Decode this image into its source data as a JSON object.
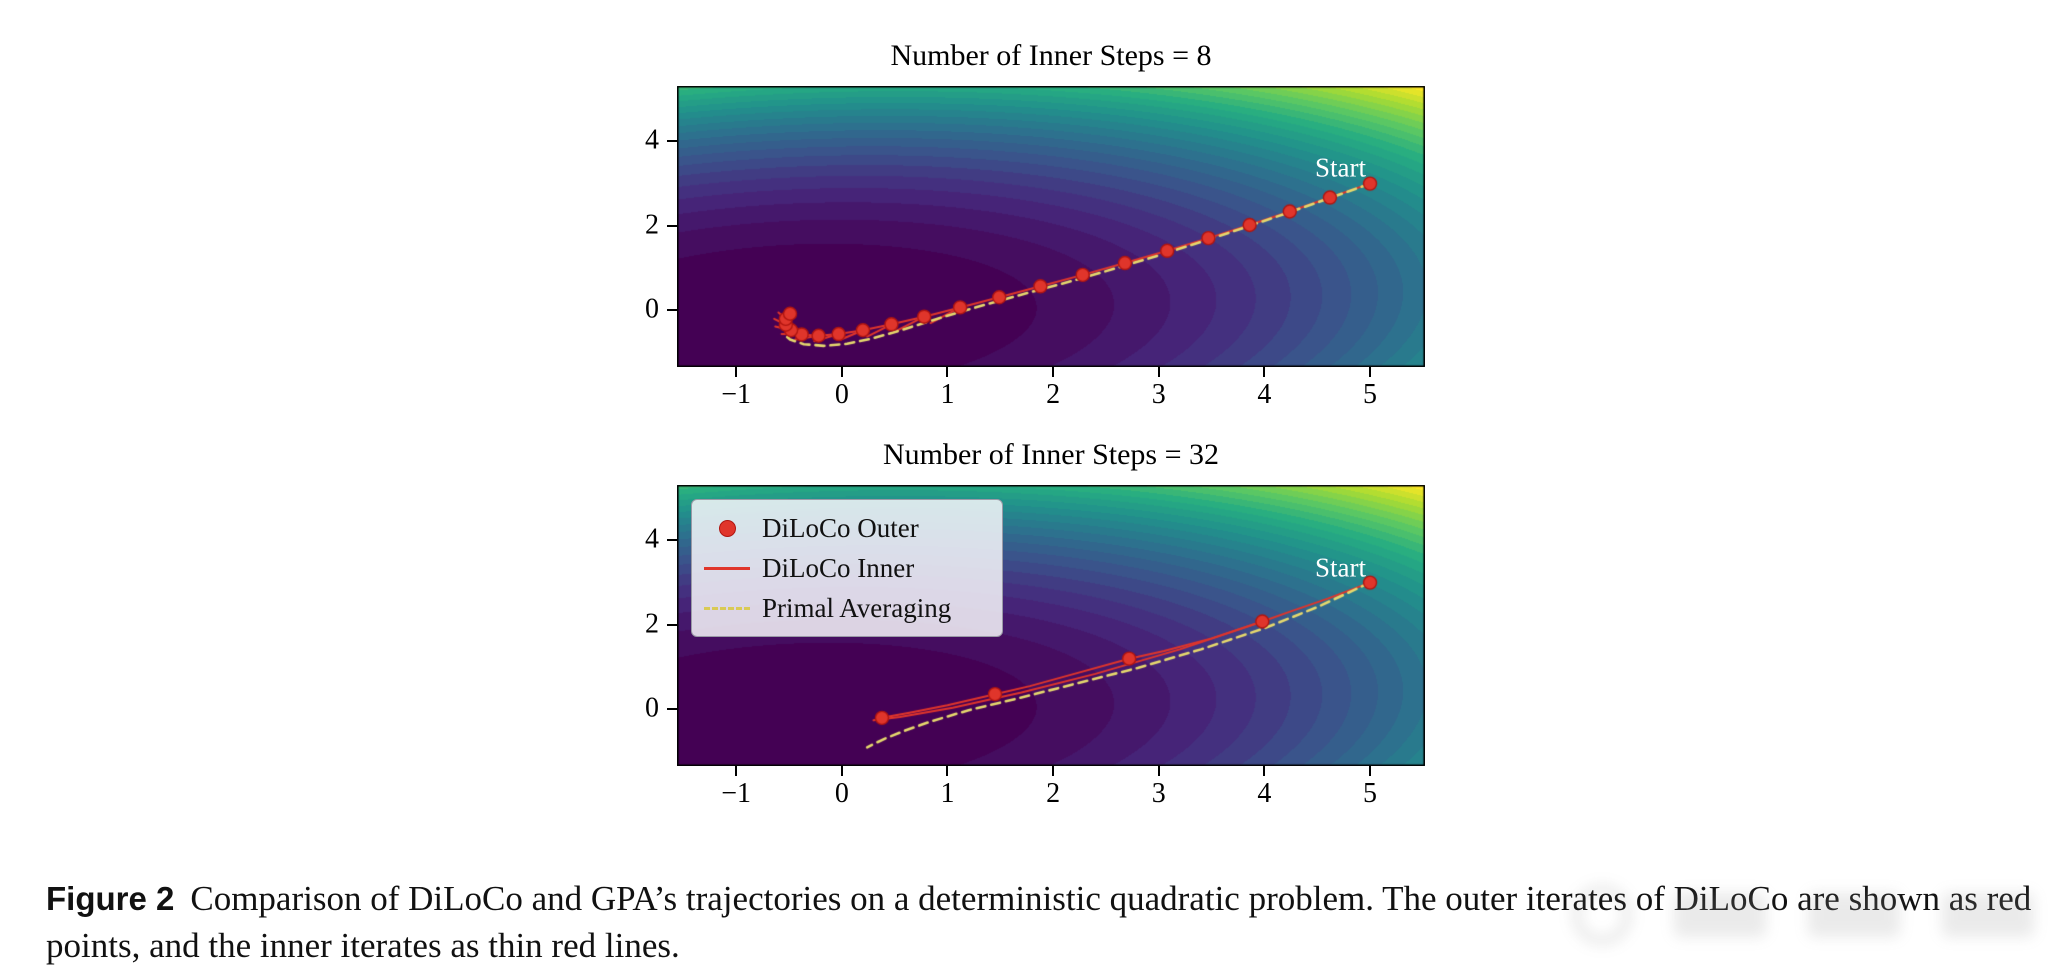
{
  "page": {
    "background": "#ffffff"
  },
  "figure": {
    "caption_label": "Figure 2",
    "caption_text": "Comparison of DiLoCo and GPA’s trajectories on a deterministic quadratic problem. The outer iterates of DiLoCo are shown as red points, and the inner iterates as thin red lines."
  },
  "legend": {
    "items": [
      {
        "label": "DiLoCo Outer",
        "marker": "dot"
      },
      {
        "label": "DiLoCo Inner",
        "marker": "line"
      },
      {
        "label": "Primal Averaging",
        "marker": "dashed"
      }
    ]
  },
  "colors": {
    "red": "#e0352b",
    "red_edge": "#b01510",
    "dashed_yellow": "#e6d96d",
    "start_text": "#ffffff",
    "axis": "#000000",
    "viridis_stops": [
      "#440154",
      "#46287c",
      "#3b528b",
      "#2c728e",
      "#21918c",
      "#27ad81",
      "#5ec962",
      "#aadc32",
      "#fde725"
    ]
  },
  "chart_data": [
    {
      "id": "plot1",
      "type": "contour-trajectory",
      "title": "Number of Inner Steps = 8",
      "xlim": [
        -1.56,
        5.52
      ],
      "ylim": [
        -1.34,
        5.31
      ],
      "xticks": [
        -1,
        0,
        1,
        2,
        3,
        4,
        5
      ],
      "yticks": [
        0,
        2,
        4
      ],
      "grid": false,
      "start_label": "Start",
      "start_pos": [
        4.72,
        3.38
      ],
      "background": {
        "colormap": "viridis",
        "center": [
          -0.45,
          -0.2
        ],
        "coeffs": [
          0.6,
          1.0,
          -0.22
        ],
        "levels": 28,
        "gamma": 1.25
      },
      "outer_points": [
        [
          5.0,
          3.0
        ],
        [
          4.62,
          2.67
        ],
        [
          4.24,
          2.34
        ],
        [
          3.86,
          2.02
        ],
        [
          3.47,
          1.71
        ],
        [
          3.08,
          1.41
        ],
        [
          2.68,
          1.12
        ],
        [
          2.28,
          0.84
        ],
        [
          1.88,
          0.57
        ],
        [
          1.49,
          0.31
        ],
        [
          1.12,
          0.07
        ],
        [
          0.78,
          -0.15
        ],
        [
          0.47,
          -0.33
        ],
        [
          0.2,
          -0.47
        ],
        [
          -0.03,
          -0.56
        ],
        [
          -0.22,
          -0.6
        ],
        [
          -0.38,
          -0.57
        ],
        [
          -0.48,
          -0.47
        ],
        [
          -0.53,
          -0.34
        ],
        [
          -0.53,
          -0.2
        ],
        [
          -0.49,
          -0.08
        ]
      ],
      "inner_lines": [
        [
          [
            5.0,
            3.0
          ],
          [
            4.62,
            2.67
          ],
          [
            4.24,
            2.34
          ],
          [
            3.86,
            2.02
          ],
          [
            3.47,
            1.71
          ],
          [
            3.08,
            1.41
          ],
          [
            2.68,
            1.12
          ],
          [
            2.28,
            0.84
          ],
          [
            1.88,
            0.57
          ],
          [
            1.49,
            0.31
          ],
          [
            1.12,
            0.07
          ],
          [
            0.78,
            -0.15
          ],
          [
            0.47,
            -0.33
          ],
          [
            0.2,
            -0.47
          ],
          [
            -0.03,
            -0.56
          ],
          [
            -0.22,
            -0.6
          ],
          [
            -0.38,
            -0.57
          ],
          [
            -0.48,
            -0.47
          ],
          [
            -0.53,
            -0.34
          ],
          [
            -0.53,
            -0.2
          ],
          [
            -0.49,
            -0.08
          ]
        ],
        [
          [
            1.12,
            0.07
          ],
          [
            0.84,
            -0.3
          ]
        ],
        [
          [
            0.78,
            -0.15
          ],
          [
            0.52,
            -0.48
          ]
        ],
        [
          [
            0.47,
            -0.33
          ],
          [
            0.24,
            -0.62
          ]
        ],
        [
          [
            0.2,
            -0.47
          ],
          [
            -0.02,
            -0.7
          ]
        ],
        [
          [
            -0.03,
            -0.56
          ],
          [
            -0.26,
            -0.73
          ]
        ],
        [
          [
            -0.22,
            -0.6
          ],
          [
            -0.44,
            -0.69
          ]
        ],
        [
          [
            -0.38,
            -0.57
          ],
          [
            -0.57,
            -0.56
          ]
        ],
        [
          [
            -0.48,
            -0.47
          ],
          [
            -0.63,
            -0.38
          ]
        ],
        [
          [
            -0.53,
            -0.34
          ],
          [
            -0.64,
            -0.2
          ]
        ],
        [
          [
            -0.53,
            -0.2
          ],
          [
            -0.6,
            -0.05
          ]
        ],
        [
          [
            -0.49,
            -0.08
          ],
          [
            -0.5,
            -0.22
          ]
        ]
      ],
      "primal_averaging": [
        [
          5.0,
          3.0
        ],
        [
          4.6,
          2.64
        ],
        [
          4.2,
          2.29
        ],
        [
          3.8,
          1.95
        ],
        [
          3.4,
          1.62
        ],
        [
          3.0,
          1.3
        ],
        [
          2.6,
          1.0
        ],
        [
          2.2,
          0.71
        ],
        [
          1.8,
          0.44
        ],
        [
          1.45,
          0.2
        ],
        [
          1.1,
          -0.05
        ],
        [
          0.8,
          -0.28
        ],
        [
          0.52,
          -0.5
        ],
        [
          0.28,
          -0.67
        ],
        [
          0.05,
          -0.79
        ],
        [
          -0.17,
          -0.84
        ],
        [
          -0.36,
          -0.8
        ],
        [
          -0.49,
          -0.69
        ],
        [
          -0.56,
          -0.54
        ]
      ],
      "has_legend": false
    },
    {
      "id": "plot2",
      "type": "contour-trajectory",
      "title": "Number of Inner Steps = 32",
      "xlim": [
        -1.56,
        5.52
      ],
      "ylim": [
        -1.34,
        5.31
      ],
      "xticks": [
        -1,
        0,
        1,
        2,
        3,
        4,
        5
      ],
      "yticks": [
        0,
        2,
        4
      ],
      "grid": false,
      "start_label": "Start",
      "start_pos": [
        4.72,
        3.35
      ],
      "background": {
        "colormap": "viridis",
        "center": [
          -0.45,
          -0.2
        ],
        "coeffs": [
          0.6,
          1.0,
          -0.22
        ],
        "levels": 28,
        "gamma": 1.25
      },
      "outer_points": [
        [
          5.0,
          3.0
        ],
        [
          3.98,
          2.08
        ],
        [
          2.72,
          1.2
        ],
        [
          1.45,
          0.36
        ],
        [
          0.38,
          -0.2
        ]
      ],
      "inner_lines": [
        [
          [
            5.0,
            3.0
          ],
          [
            4.6,
            2.62
          ],
          [
            4.25,
            2.32
          ],
          [
            3.98,
            2.08
          ]
        ],
        [
          [
            3.98,
            2.08
          ],
          [
            3.5,
            1.68
          ],
          [
            3.05,
            1.38
          ],
          [
            2.72,
            1.2
          ]
        ],
        [
          [
            2.72,
            1.2
          ],
          [
            2.2,
            0.84
          ],
          [
            1.78,
            0.55
          ],
          [
            1.45,
            0.36
          ]
        ],
        [
          [
            1.45,
            0.36
          ],
          [
            1.0,
            0.1
          ],
          [
            0.64,
            -0.08
          ],
          [
            0.38,
            -0.2
          ]
        ],
        [
          [
            3.98,
            2.08
          ],
          [
            3.2,
            1.42
          ],
          [
            2.4,
            0.84
          ],
          [
            1.7,
            0.4
          ],
          [
            1.05,
            0.04
          ],
          [
            0.55,
            -0.18
          ],
          [
            0.3,
            -0.26
          ]
        ]
      ],
      "primal_averaging": [
        [
          5.0,
          3.0
        ],
        [
          4.5,
          2.42
        ],
        [
          4.0,
          1.92
        ],
        [
          3.4,
          1.42
        ],
        [
          2.8,
          0.98
        ],
        [
          2.2,
          0.6
        ],
        [
          1.7,
          0.28
        ],
        [
          1.2,
          -0.02
        ],
        [
          0.85,
          -0.28
        ],
        [
          0.6,
          -0.5
        ],
        [
          0.42,
          -0.68
        ],
        [
          0.3,
          -0.82
        ],
        [
          0.24,
          -0.9
        ]
      ],
      "has_legend": true
    }
  ]
}
